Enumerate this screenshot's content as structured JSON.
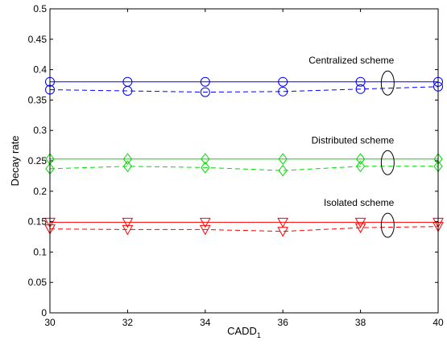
{
  "chart_data": {
    "type": "line",
    "xlabel": "CADD",
    "xlabel_sub": "1",
    "ylabel": "Decay rate",
    "xlim": [
      30,
      40
    ],
    "ylim": [
      0,
      0.5
    ],
    "xticks": [
      30,
      32,
      34,
      36,
      38,
      40
    ],
    "yticks": [
      0,
      0.05,
      0.1,
      0.15,
      0.2,
      0.25,
      0.3,
      0.35,
      0.4,
      0.45,
      0.5
    ],
    "xtick_labels": [
      "30",
      "32",
      "34",
      "36",
      "38",
      "40"
    ],
    "ytick_labels": [
      "0",
      "0.05",
      "0.1",
      "0.15",
      "0.2",
      "0.25",
      "0.3",
      "0.35",
      "0.4",
      "0.45",
      "0.5"
    ],
    "grid": false,
    "x": [
      30,
      32,
      34,
      36,
      38,
      40
    ],
    "series": [
      {
        "color": "#0000ff",
        "style": "solid",
        "marker": "circle",
        "values": [
          0.38,
          0.38,
          0.38,
          0.38,
          0.38,
          0.38
        ]
      },
      {
        "color": "#0000ff",
        "style": "dashed",
        "marker": "circle",
        "values": [
          0.367,
          0.365,
          0.363,
          0.364,
          0.368,
          0.372
        ]
      },
      {
        "color": "#00dd00",
        "style": "solid",
        "marker": "diamond",
        "values": [
          0.253,
          0.253,
          0.253,
          0.253,
          0.253,
          0.253
        ]
      },
      {
        "color": "#00dd00",
        "style": "dashed",
        "marker": "diamond",
        "values": [
          0.237,
          0.241,
          0.239,
          0.234,
          0.241,
          0.241
        ]
      },
      {
        "color": "#ff0000",
        "style": "solid",
        "marker": "triangle-down",
        "values": [
          0.149,
          0.149,
          0.149,
          0.149,
          0.149,
          0.149
        ]
      },
      {
        "color": "#ff0000",
        "style": "dashed",
        "marker": "triangle-down",
        "values": [
          0.138,
          0.137,
          0.137,
          0.134,
          0.14,
          0.142
        ]
      }
    ],
    "annotations": [
      {
        "text": "Centralized scheme",
        "x": 38.7,
        "y": 0.378
      },
      {
        "text": "Distributed scheme",
        "x": 38.7,
        "y": 0.247
      },
      {
        "text": "Isolated scheme",
        "x": 38.7,
        "y": 0.144
      }
    ]
  }
}
